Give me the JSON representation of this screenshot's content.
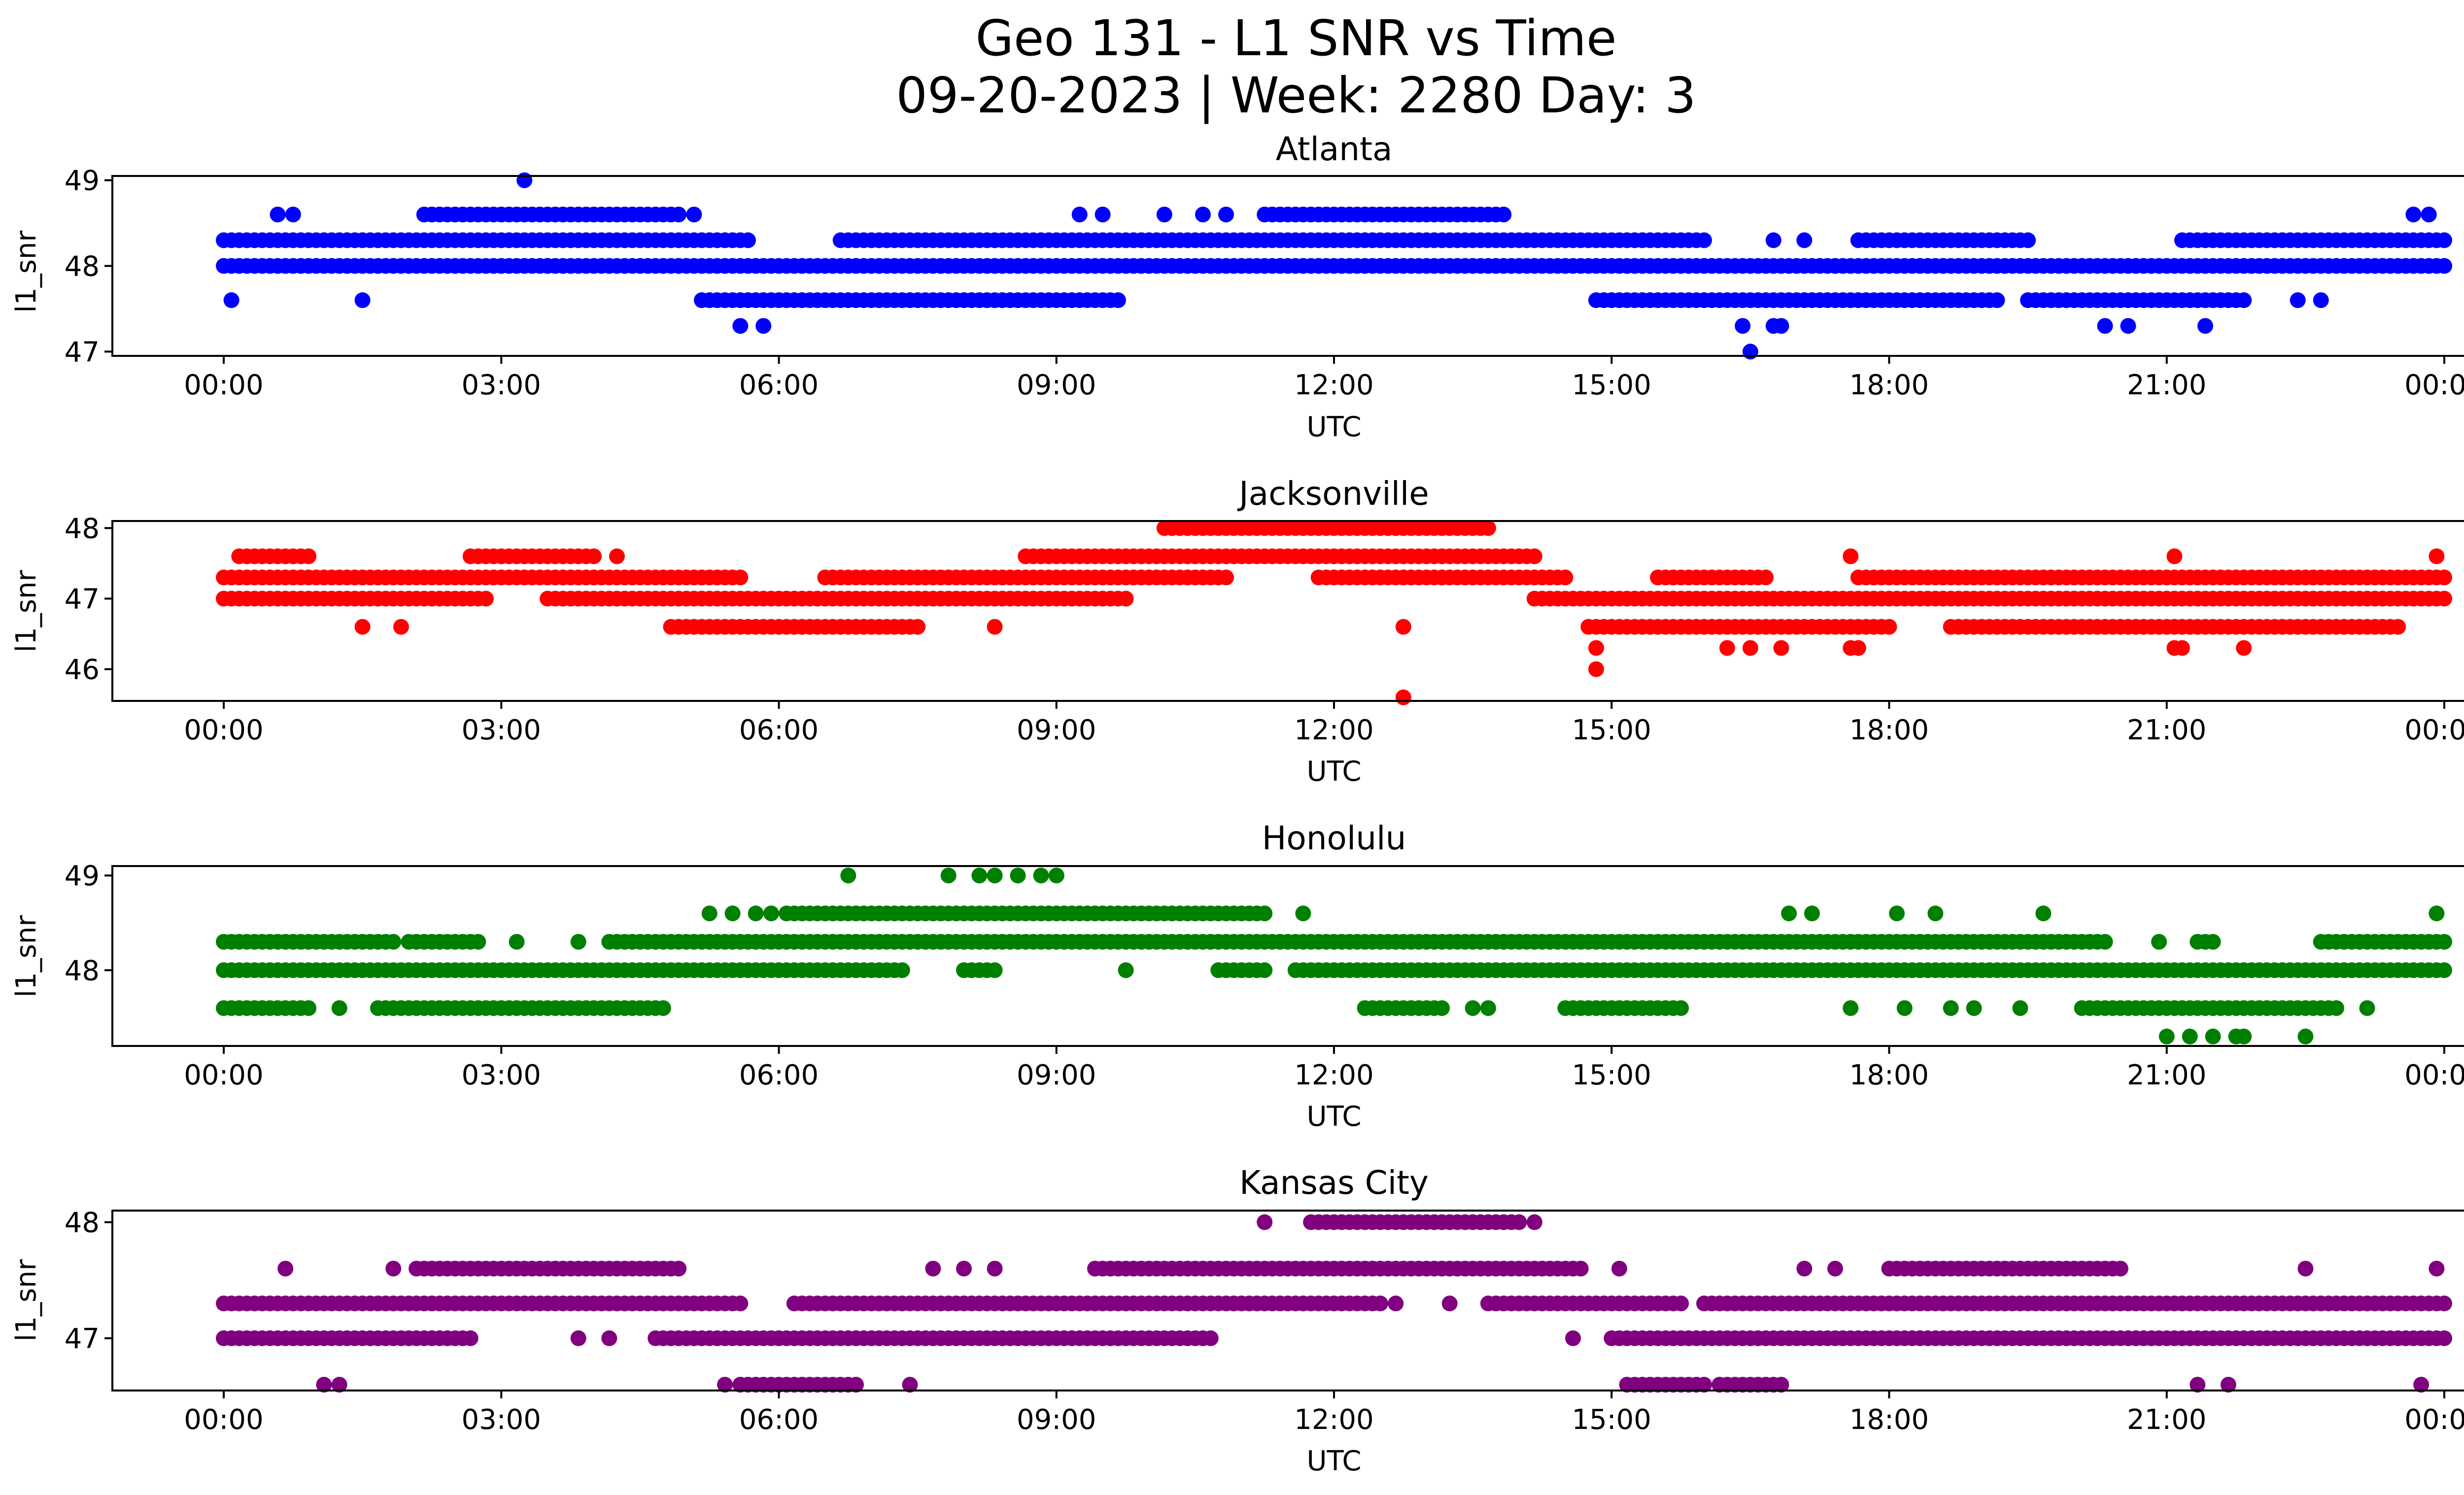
{
  "figure": {
    "title_line1": "Geo 131 - L1 SNR vs Time",
    "title_line2": "09-20-2023 | Week: 2280 Day: 3"
  },
  "chart_data": [
    {
      "type": "scatter",
      "title": "Atlanta",
      "xlabel": "UTC",
      "ylabel": "l1_snr",
      "color": "#0000ff",
      "xlim": [
        "00:00",
        "24:00"
      ],
      "ylim": [
        46.95,
        49.05
      ],
      "xticks": [
        "00:00",
        "03:00",
        "06:00",
        "09:00",
        "12:00",
        "15:00",
        "18:00",
        "21:00",
        "00:00"
      ],
      "yticks": [
        47,
        48,
        49
      ],
      "bands": [
        {
          "y": 48.0,
          "segments": [
            [
              "00:00",
              "04:55"
            ],
            [
              "04:55",
              "24:00"
            ]
          ]
        },
        {
          "y": 48.3,
          "segments": [
            [
              "00:00",
              "05:40"
            ],
            [
              "06:40",
              "16:00"
            ],
            [
              "17:40",
              "19:30"
            ],
            [
              "21:10",
              "24:00"
            ]
          ]
        },
        {
          "y": 48.6,
          "segments": [
            [
              "02:10",
              "04:55"
            ],
            [
              "11:15",
              "13:50"
            ]
          ]
        },
        {
          "y": 47.6,
          "segments": [
            [
              "05:10",
              "09:40"
            ],
            [
              "14:50",
              "19:10"
            ],
            [
              "19:30",
              "21:50"
            ]
          ]
        }
      ],
      "points": [
        [
          "00:05",
          47.6
        ],
        [
          "00:35",
          48.6
        ],
        [
          "00:45",
          48.6
        ],
        [
          "01:30",
          47.6
        ],
        [
          "03:15",
          49.0
        ],
        [
          "03:30",
          48.0
        ],
        [
          "04:10",
          48.0
        ],
        [
          "05:05",
          48.6
        ],
        [
          "05:35",
          47.3
        ],
        [
          "05:50",
          47.3
        ],
        [
          "09:15",
          48.6
        ],
        [
          "09:30",
          48.6
        ],
        [
          "10:10",
          48.6
        ],
        [
          "10:35",
          48.6
        ],
        [
          "10:50",
          48.6
        ],
        [
          "16:25",
          47.3
        ],
        [
          "16:30",
          47.0
        ],
        [
          "16:45",
          47.3
        ],
        [
          "16:50",
          47.3
        ],
        [
          "16:45",
          48.3
        ],
        [
          "17:05",
          48.3
        ],
        [
          "20:20",
          47.3
        ],
        [
          "20:35",
          47.3
        ],
        [
          "21:25",
          47.3
        ],
        [
          "22:25",
          47.6
        ],
        [
          "22:40",
          47.6
        ],
        [
          "23:40",
          48.6
        ],
        [
          "23:50",
          48.6
        ]
      ]
    },
    {
      "type": "scatter",
      "title": "Jacksonville",
      "xlabel": "UTC",
      "ylabel": "l1_snr",
      "color": "#ff0000",
      "xlim": [
        "00:00",
        "24:00"
      ],
      "ylim": [
        45.55,
        48.1
      ],
      "xticks": [
        "00:00",
        "03:00",
        "06:00",
        "09:00",
        "12:00",
        "15:00",
        "18:00",
        "21:00",
        "00:00"
      ],
      "yticks": [
        46,
        47,
        48
      ],
      "bands": [
        {
          "y": 47.3,
          "segments": [
            [
              "00:00",
              "05:35"
            ],
            [
              "06:30",
              "10:50"
            ],
            [
              "11:50",
              "14:30"
            ],
            [
              "15:30",
              "16:40"
            ],
            [
              "17:40",
              "24:00"
            ]
          ]
        },
        {
          "y": 47.0,
          "segments": [
            [
              "00:00",
              "02:50"
            ],
            [
              "03:30",
              "09:40"
            ],
            [
              "14:10",
              "24:00"
            ]
          ]
        },
        {
          "y": 47.6,
          "segments": [
            [
              "00:10",
              "00:55"
            ],
            [
              "02:40",
              "04:00"
            ],
            [
              "08:40",
              "14:10"
            ]
          ]
        },
        {
          "y": 46.6,
          "segments": [
            [
              "04:50",
              "07:30"
            ],
            [
              "14:45",
              "18:00"
            ],
            [
              "18:40",
              "23:30"
            ]
          ]
        },
        {
          "y": 48.0,
          "segments": [
            [
              "10:10",
              "13:40"
            ]
          ]
        }
      ],
      "points": [
        [
          "01:30",
          46.6
        ],
        [
          "01:55",
          46.6
        ],
        [
          "04:15",
          47.6
        ],
        [
          "08:20",
          46.6
        ],
        [
          "09:45",
          47.0
        ],
        [
          "12:30",
          47.3
        ],
        [
          "12:45",
          47.3
        ],
        [
          "12:45",
          46.6
        ],
        [
          "12:45",
          45.6
        ],
        [
          "14:50",
          46.3
        ],
        [
          "14:50",
          46.0
        ],
        [
          "16:15",
          46.3
        ],
        [
          "16:30",
          46.3
        ],
        [
          "16:50",
          46.3
        ],
        [
          "17:35",
          47.6
        ],
        [
          "17:35",
          46.3
        ],
        [
          "17:40",
          46.3
        ],
        [
          "21:05",
          47.6
        ],
        [
          "21:05",
          46.3
        ],
        [
          "21:10",
          46.3
        ],
        [
          "21:50",
          46.3
        ],
        [
          "23:55",
          47.6
        ]
      ]
    },
    {
      "type": "scatter",
      "title": "Honolulu",
      "xlabel": "UTC",
      "ylabel": "l1_snr",
      "color": "#008000",
      "xlim": [
        "00:00",
        "24:00"
      ],
      "ylim": [
        47.2,
        49.1
      ],
      "xticks": [
        "00:00",
        "03:00",
        "06:00",
        "09:00",
        "12:00",
        "15:00",
        "18:00",
        "21:00",
        "00:00"
      ],
      "yticks": [
        48,
        49
      ],
      "bands": [
        {
          "y": 48.3,
          "segments": [
            [
              "00:00",
              "01:50"
            ],
            [
              "02:00",
              "02:45"
            ],
            [
              "04:10",
              "20:20"
            ],
            [
              "21:20",
              "21:30"
            ],
            [
              "22:40",
              "24:00"
            ]
          ]
        },
        {
          "y": 48.0,
          "segments": [
            [
              "00:00",
              "07:20"
            ],
            [
              "08:00",
              "08:20"
            ],
            [
              "10:45",
              "11:15"
            ],
            [
              "11:35",
              "24:00"
            ]
          ]
        },
        {
          "y": 47.6,
          "segments": [
            [
              "00:00",
              "00:55"
            ],
            [
              "01:40",
              "04:40"
            ],
            [
              "12:20",
              "13:10"
            ],
            [
              "14:30",
              "15:45"
            ],
            [
              "20:05",
              "22:50"
            ]
          ]
        },
        {
          "y": 48.6,
          "segments": [
            [
              "06:05",
              "11:15"
            ]
          ]
        }
      ],
      "points": [
        [
          "01:15",
          47.6
        ],
        [
          "03:10",
          48.3
        ],
        [
          "03:50",
          48.3
        ],
        [
          "04:45",
          47.6
        ],
        [
          "05:15",
          48.6
        ],
        [
          "05:30",
          48.6
        ],
        [
          "05:45",
          48.6
        ],
        [
          "05:55",
          48.6
        ],
        [
          "06:45",
          49.0
        ],
        [
          "07:50",
          49.0
        ],
        [
          "08:10",
          49.0
        ],
        [
          "08:20",
          49.0
        ],
        [
          "08:35",
          49.0
        ],
        [
          "08:50",
          49.0
        ],
        [
          "09:00",
          49.0
        ],
        [
          "09:45",
          48.0
        ],
        [
          "11:40",
          48.6
        ],
        [
          "13:30",
          47.6
        ],
        [
          "13:40",
          47.6
        ],
        [
          "16:55",
          48.6
        ],
        [
          "17:10",
          48.6
        ],
        [
          "17:35",
          47.6
        ],
        [
          "18:05",
          48.6
        ],
        [
          "18:10",
          47.6
        ],
        [
          "18:30",
          48.6
        ],
        [
          "18:40",
          47.6
        ],
        [
          "18:55",
          47.6
        ],
        [
          "19:25",
          47.6
        ],
        [
          "19:40",
          48.6
        ],
        [
          "20:55",
          48.3
        ],
        [
          "21:00",
          47.3
        ],
        [
          "21:15",
          47.3
        ],
        [
          "21:30",
          47.3
        ],
        [
          "21:45",
          47.3
        ],
        [
          "21:50",
          47.3
        ],
        [
          "22:30",
          47.3
        ],
        [
          "23:10",
          47.6
        ],
        [
          "23:55",
          48.6
        ]
      ]
    },
    {
      "type": "scatter",
      "title": "Kansas City",
      "xlabel": "UTC",
      "ylabel": "l1_snr",
      "color": "#800080",
      "xlim": [
        "00:00",
        "24:00"
      ],
      "ylim": [
        46.55,
        48.1
      ],
      "xticks": [
        "00:00",
        "03:00",
        "06:00",
        "09:00",
        "12:00",
        "15:00",
        "18:00",
        "21:00",
        "00:00"
      ],
      "yticks": [
        47,
        48
      ],
      "bands": [
        {
          "y": 47.3,
          "segments": [
            [
              "00:00",
              "05:35"
            ],
            [
              "06:10",
              "12:30"
            ],
            [
              "13:40",
              "15:45"
            ],
            [
              "16:00",
              "24:00"
            ]
          ]
        },
        {
          "y": 47.0,
          "segments": [
            [
              "00:00",
              "02:35"
            ],
            [
              "04:40",
              "10:40"
            ],
            [
              "15:00",
              "24:00"
            ]
          ]
        },
        {
          "y": 47.6,
          "segments": [
            [
              "02:05",
              "04:55"
            ],
            [
              "09:25",
              "14:40"
            ],
            [
              "18:00",
              "20:30"
            ]
          ]
        },
        {
          "y": 48.0,
          "segments": [
            [
              "11:45",
              "14:00"
            ]
          ]
        },
        {
          "y": 46.6,
          "segments": [
            [
              "05:35",
              "06:50"
            ],
            [
              "15:10",
              "16:00"
            ],
            [
              "16:10",
              "16:50"
            ]
          ]
        }
      ],
      "points": [
        [
          "00:40",
          47.6
        ],
        [
          "01:05",
          46.6
        ],
        [
          "01:15",
          46.6
        ],
        [
          "01:50",
          47.6
        ],
        [
          "02:40",
          47.0
        ],
        [
          "03:50",
          47.0
        ],
        [
          "04:10",
          47.0
        ],
        [
          "05:25",
          46.6
        ],
        [
          "07:25",
          46.6
        ],
        [
          "07:40",
          47.6
        ],
        [
          "08:00",
          47.6
        ],
        [
          "08:20",
          47.6
        ],
        [
          "11:15",
          48.0
        ],
        [
          "12:40",
          47.3
        ],
        [
          "13:15",
          47.3
        ],
        [
          "14:10",
          48.0
        ],
        [
          "14:35",
          47.0
        ],
        [
          "15:05",
          47.6
        ],
        [
          "17:05",
          47.6
        ],
        [
          "17:25",
          47.6
        ],
        [
          "21:20",
          46.6
        ],
        [
          "21:40",
          46.6
        ],
        [
          "22:30",
          47.6
        ],
        [
          "23:45",
          46.6
        ],
        [
          "23:55",
          47.6
        ]
      ]
    }
  ]
}
